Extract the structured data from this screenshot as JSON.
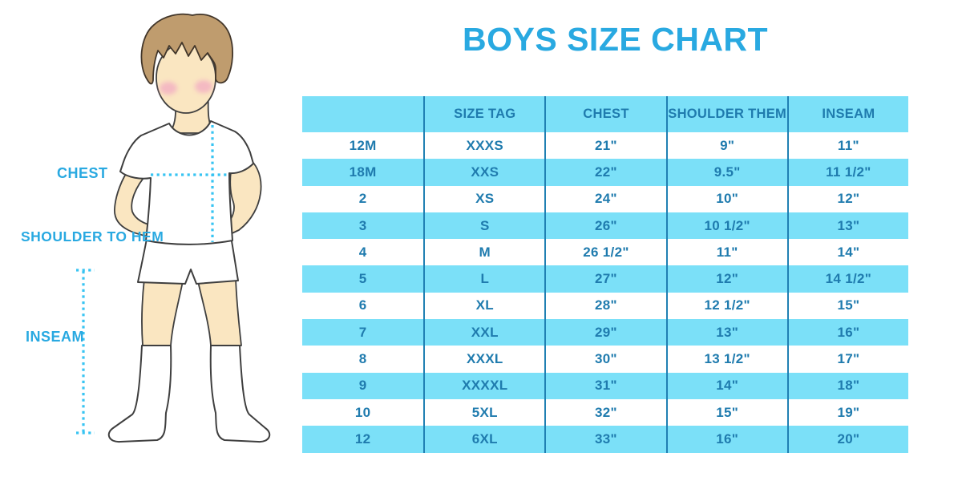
{
  "title": "BOYS SIZE CHART",
  "colors": {
    "accent_blue": "#29a9e1",
    "dotted_line_blue": "#38c4f2",
    "table_row_fill": "#7be0f8",
    "table_divider": "#2080b3",
    "table_text": "#1f7bae",
    "skin": "#fae6c1",
    "hair": "#bf9c6e",
    "blush": "#f3aec3"
  },
  "figure": {
    "labels": {
      "chest": "CHEST",
      "shoulder_to_hem": "SHOULDER TO HEM",
      "inseam": "INSEAM"
    }
  },
  "chart_data": {
    "type": "table",
    "title": "BOYS SIZE CHART",
    "columns": [
      "",
      "SIZE TAG",
      "CHEST",
      "SHOULDER THEM",
      "INSEAM"
    ],
    "rows": [
      [
        "12M",
        "XXXS",
        "21\"",
        "9\"",
        "11\""
      ],
      [
        "18M",
        "XXS",
        "22\"",
        "9.5\"",
        "11 1/2\""
      ],
      [
        "2",
        "XS",
        "24\"",
        "10\"",
        "12\""
      ],
      [
        "3",
        "S",
        "26\"",
        "10 1/2\"",
        "13\""
      ],
      [
        "4",
        "M",
        "26 1/2\"",
        "11\"",
        "14\""
      ],
      [
        "5",
        "L",
        "27\"",
        "12\"",
        "14 1/2\""
      ],
      [
        "6",
        "XL",
        "28\"",
        "12 1/2\"",
        "15\""
      ],
      [
        "7",
        "XXL",
        "29\"",
        "13\"",
        "16\""
      ],
      [
        "8",
        "XXXL",
        "30\"",
        "13 1/2\"",
        "17\""
      ],
      [
        "9",
        "XXXXL",
        "31\"",
        "14\"",
        "18\""
      ],
      [
        "10",
        "5XL",
        "32\"",
        "15\"",
        "19\""
      ],
      [
        "12",
        "6XL",
        "33\"",
        "16\"",
        "20\""
      ]
    ],
    "layout": {
      "row_striping": "alternating white / light blue",
      "dividers": "vertical only",
      "header_background": "light blue"
    }
  }
}
